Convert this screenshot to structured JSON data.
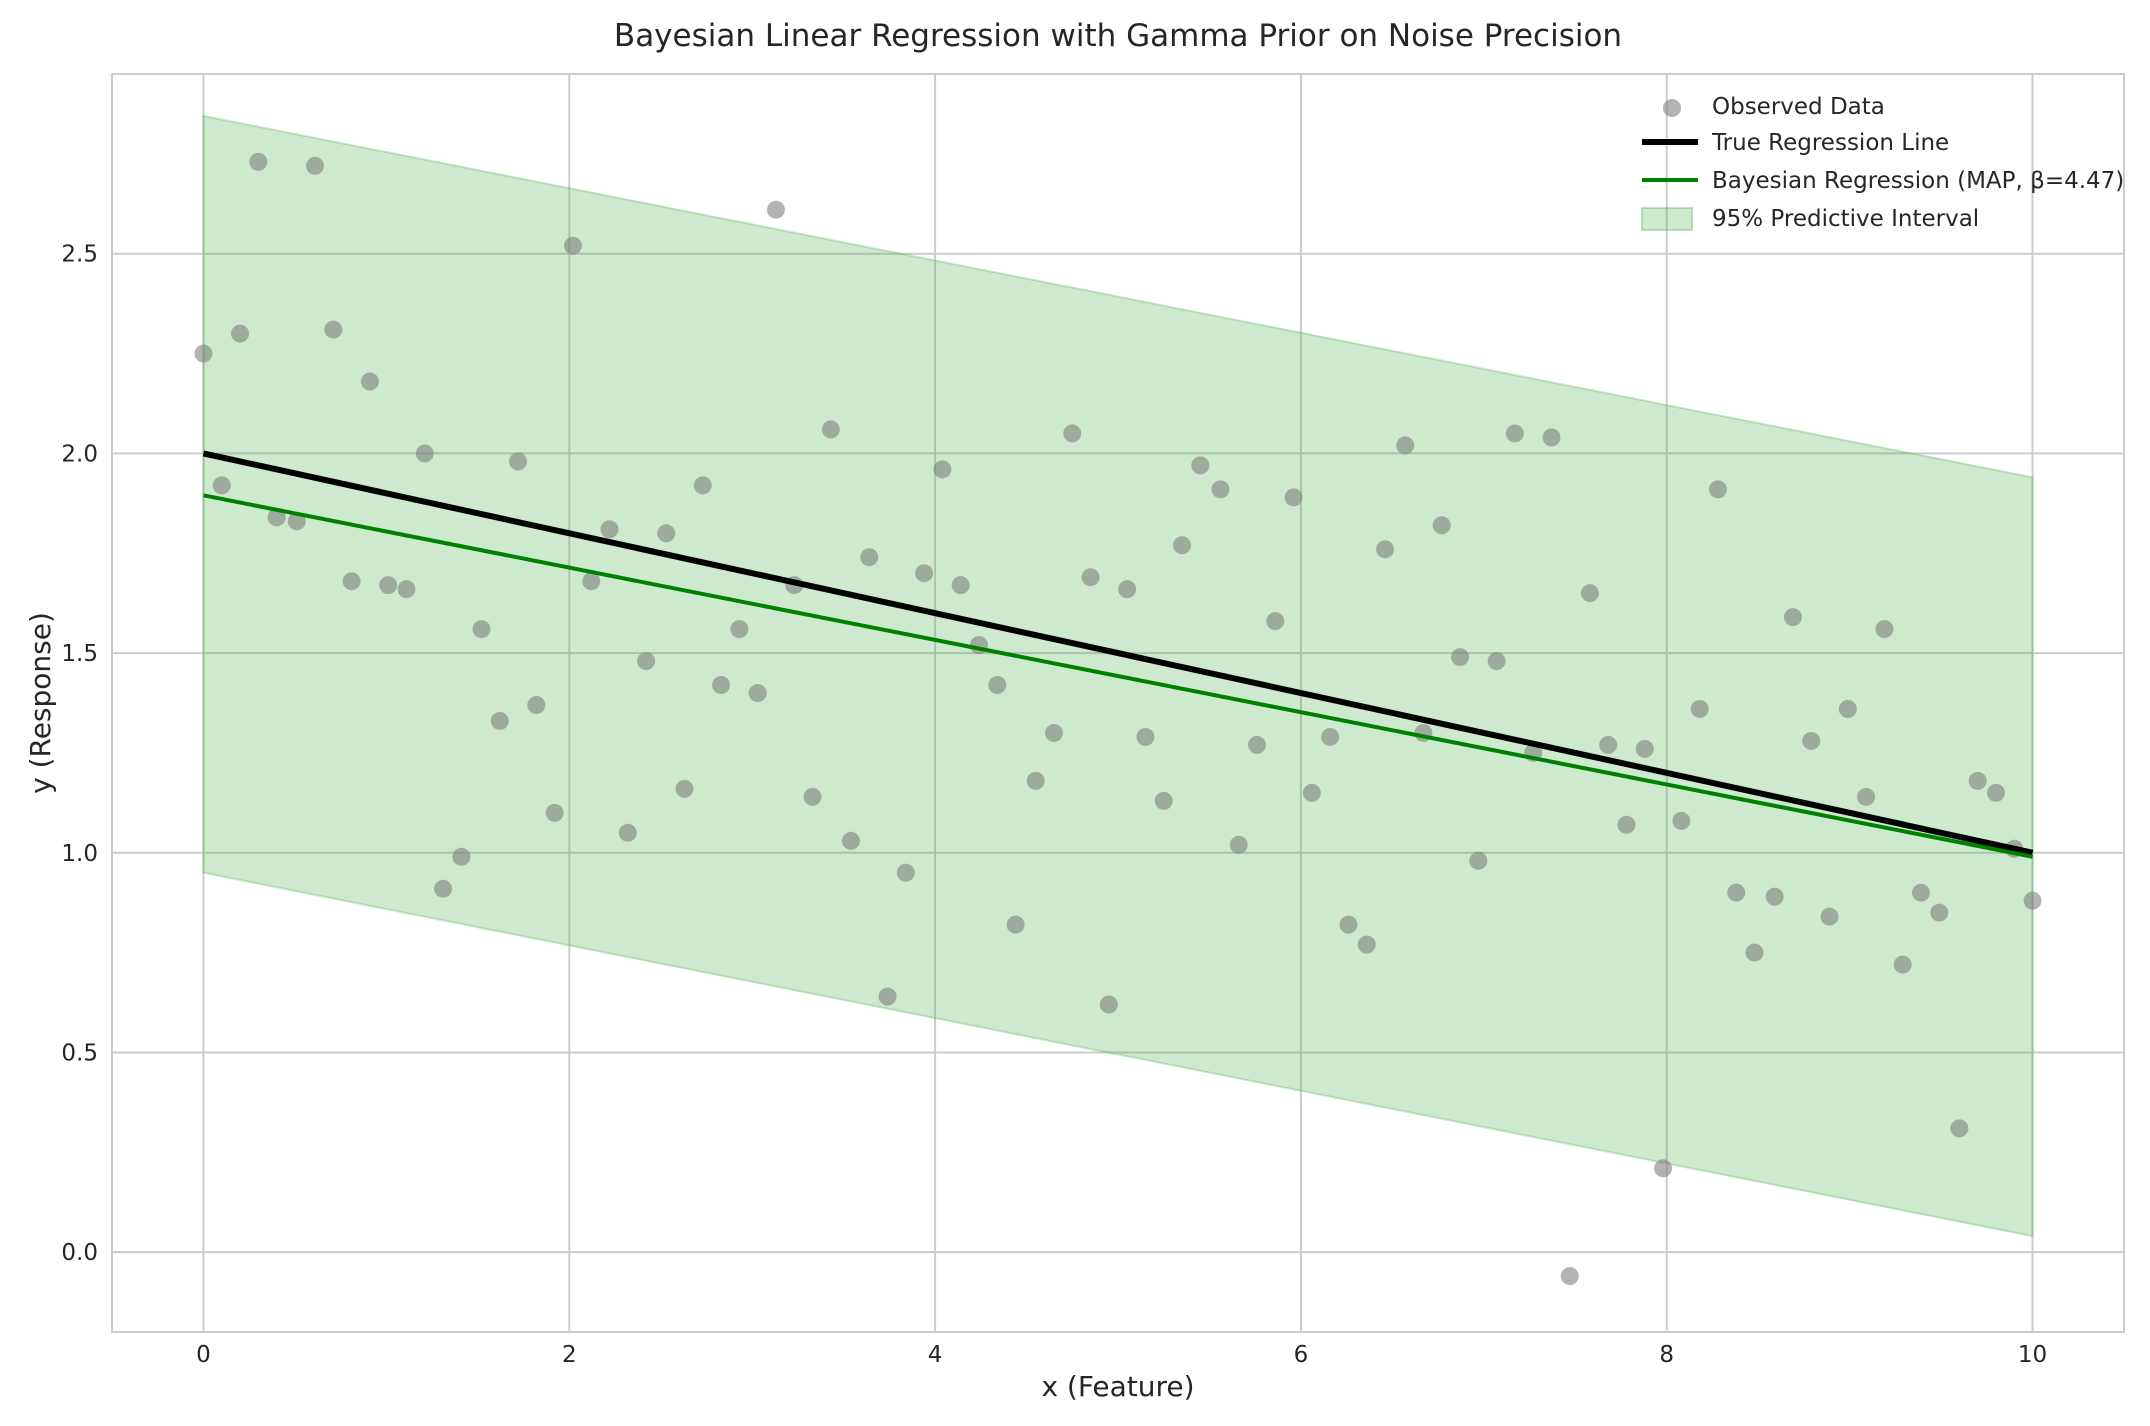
{
  "chart_data": {
    "type": "scatter",
    "title": "Bayesian Linear Regression with Gamma Prior on Noise Precision",
    "xlabel": "x (Feature)",
    "ylabel": "y (Response)",
    "xlim": [
      -0.5,
      10.5
    ],
    "ylim": [
      -0.2,
      2.95
    ],
    "x_ticks": [
      0,
      2,
      4,
      6,
      8,
      10
    ],
    "y_ticks": [
      0.0,
      0.5,
      1.0,
      1.5,
      2.0,
      2.5
    ],
    "x_tick_labels": [
      "0",
      "2",
      "4",
      "6",
      "8",
      "10"
    ],
    "y_tick_labels": [
      "0.0",
      "0.5",
      "1.0",
      "1.5",
      "2.0",
      "2.5"
    ],
    "grid": true,
    "legend_position": "top-right",
    "series": [
      {
        "name": "Observed Data",
        "kind": "scatter",
        "color": "#808080",
        "points": [
          [
            0.0,
            2.25
          ],
          [
            0.1,
            1.92
          ],
          [
            0.2,
            2.3
          ],
          [
            0.3,
            2.73
          ],
          [
            0.4,
            1.84
          ],
          [
            0.51,
            1.83
          ],
          [
            0.61,
            2.72
          ],
          [
            0.71,
            2.31
          ],
          [
            0.81,
            1.68
          ],
          [
            0.91,
            2.18
          ],
          [
            1.01,
            1.67
          ],
          [
            1.11,
            1.66
          ],
          [
            1.21,
            2.0
          ],
          [
            1.31,
            0.91
          ],
          [
            1.41,
            0.99
          ],
          [
            1.52,
            1.56
          ],
          [
            1.62,
            1.33
          ],
          [
            1.72,
            1.98
          ],
          [
            1.82,
            1.37
          ],
          [
            1.92,
            1.1
          ],
          [
            2.02,
            2.52
          ],
          [
            2.12,
            1.68
          ],
          [
            2.22,
            1.81
          ],
          [
            2.32,
            1.05
          ],
          [
            2.42,
            1.48
          ],
          [
            2.53,
            1.8
          ],
          [
            2.63,
            1.16
          ],
          [
            2.73,
            1.92
          ],
          [
            2.83,
            1.42
          ],
          [
            2.93,
            1.56
          ],
          [
            3.03,
            1.4
          ],
          [
            3.13,
            2.61
          ],
          [
            3.23,
            1.67
          ],
          [
            3.33,
            1.14
          ],
          [
            3.43,
            2.06
          ],
          [
            3.54,
            1.03
          ],
          [
            3.64,
            1.74
          ],
          [
            3.74,
            0.64
          ],
          [
            3.84,
            0.95
          ],
          [
            3.94,
            1.7
          ],
          [
            4.04,
            1.96
          ],
          [
            4.14,
            1.67
          ],
          [
            4.24,
            1.52
          ],
          [
            4.34,
            1.42
          ],
          [
            4.44,
            0.82
          ],
          [
            4.55,
            1.18
          ],
          [
            4.65,
            1.3
          ],
          [
            4.75,
            2.05
          ],
          [
            4.85,
            1.69
          ],
          [
            4.95,
            0.62
          ],
          [
            5.05,
            1.66
          ],
          [
            5.15,
            1.29
          ],
          [
            5.25,
            1.13
          ],
          [
            5.35,
            1.77
          ],
          [
            5.45,
            1.97
          ],
          [
            5.56,
            1.91
          ],
          [
            5.66,
            1.02
          ],
          [
            5.76,
            1.27
          ],
          [
            5.86,
            1.58
          ],
          [
            5.96,
            1.89
          ],
          [
            6.06,
            1.15
          ],
          [
            6.16,
            1.29
          ],
          [
            6.26,
            0.82
          ],
          [
            6.36,
            0.77
          ],
          [
            6.46,
            1.76
          ],
          [
            6.57,
            2.02
          ],
          [
            6.67,
            1.3
          ],
          [
            6.77,
            1.82
          ],
          [
            6.87,
            1.49
          ],
          [
            6.97,
            0.98
          ],
          [
            7.07,
            1.48
          ],
          [
            7.17,
            2.05
          ],
          [
            7.27,
            1.25
          ],
          [
            7.37,
            2.04
          ],
          [
            7.47,
            -0.06
          ],
          [
            7.58,
            1.65
          ],
          [
            7.68,
            1.27
          ],
          [
            7.78,
            1.07
          ],
          [
            7.88,
            1.26
          ],
          [
            7.98,
            0.21
          ],
          [
            8.08,
            1.08
          ],
          [
            8.18,
            1.36
          ],
          [
            8.28,
            1.91
          ],
          [
            8.38,
            0.9
          ],
          [
            8.48,
            0.75
          ],
          [
            8.59,
            0.89
          ],
          [
            8.69,
            1.59
          ],
          [
            8.79,
            1.28
          ],
          [
            8.89,
            0.84
          ],
          [
            8.99,
            1.36
          ],
          [
            9.09,
            1.14
          ],
          [
            9.19,
            1.56
          ],
          [
            9.29,
            0.72
          ],
          [
            9.39,
            0.9
          ],
          [
            9.49,
            0.85
          ],
          [
            9.6,
            0.31
          ],
          [
            9.7,
            1.18
          ],
          [
            9.8,
            1.15
          ],
          [
            9.9,
            1.01
          ],
          [
            10.0,
            0.88
          ]
        ]
      },
      {
        "name": "True Regression Line",
        "kind": "line",
        "color": "#000000",
        "points": [
          [
            0,
            2.0
          ],
          [
            10,
            1.0
          ]
        ]
      },
      {
        "name": "Bayesian Regression (MAP, β=4.47)",
        "kind": "line",
        "color": "#008000",
        "points": [
          [
            0,
            1.895
          ],
          [
            10,
            0.99
          ]
        ]
      },
      {
        "name": "95% Predictive Interval",
        "kind": "band",
        "color": "#4caf50",
        "upper": [
          [
            0,
            2.845
          ],
          [
            10,
            1.94
          ]
        ],
        "lower": [
          [
            0,
            0.95
          ],
          [
            10,
            0.04
          ]
        ]
      }
    ]
  }
}
